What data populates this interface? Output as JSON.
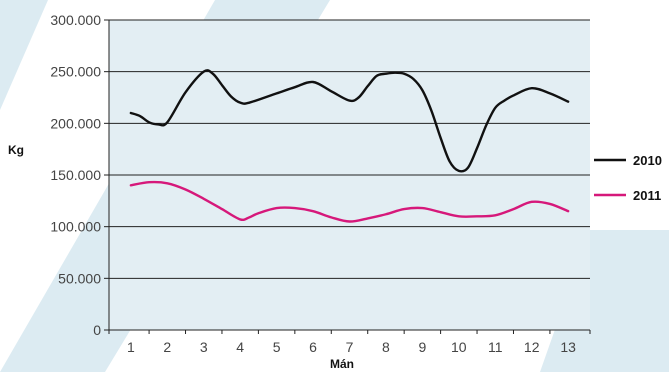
{
  "chart_data": {
    "type": "line",
    "xlabel": "Mán",
    "ylabel": "Kg",
    "x": [
      1,
      2,
      3,
      4,
      5,
      6,
      7,
      8,
      9,
      10,
      11,
      12,
      13
    ],
    "xlim": [
      0.4,
      13.6
    ],
    "ylim": [
      0,
      300000
    ],
    "y_ticks": [
      0,
      50000,
      100000,
      150000,
      200000,
      250000,
      300000
    ],
    "y_tick_labels": [
      "0",
      "50.000",
      "100.000",
      "150.000",
      "200.000",
      "250.000",
      "300.000"
    ],
    "x_tick_labels": [
      "1",
      "2",
      "3",
      "4",
      "5",
      "6",
      "7",
      "8",
      "9",
      "10",
      "11",
      "12",
      "13"
    ],
    "grid": "horizontal",
    "legend_position": "right",
    "series": [
      {
        "name": "2010",
        "color": "#111111",
        "points": [
          [
            1.0,
            210000
          ],
          [
            1.25,
            207000
          ],
          [
            1.5,
            201000
          ],
          [
            1.75,
            199000
          ],
          [
            2.0,
            201000
          ],
          [
            2.5,
            230000
          ],
          [
            3.0,
            250000
          ],
          [
            3.25,
            248000
          ],
          [
            3.5,
            237000
          ],
          [
            3.75,
            226000
          ],
          [
            4.0,
            220000
          ],
          [
            4.25,
            220000
          ],
          [
            5.0,
            229000
          ],
          [
            5.5,
            235000
          ],
          [
            6.0,
            240000
          ],
          [
            6.5,
            231000
          ],
          [
            7.0,
            222000
          ],
          [
            7.25,
            225000
          ],
          [
            7.5,
            236000
          ],
          [
            7.75,
            246000
          ],
          [
            8.0,
            248000
          ],
          [
            8.25,
            249000
          ],
          [
            8.5,
            248000
          ],
          [
            8.75,
            243000
          ],
          [
            9.0,
            232000
          ],
          [
            9.25,
            212000
          ],
          [
            9.5,
            186000
          ],
          [
            9.75,
            163000
          ],
          [
            10.0,
            154000
          ],
          [
            10.25,
            157000
          ],
          [
            10.5,
            176000
          ],
          [
            10.75,
            198000
          ],
          [
            11.0,
            215000
          ],
          [
            11.25,
            222000
          ],
          [
            11.5,
            227000
          ],
          [
            12.0,
            234000
          ],
          [
            12.5,
            229000
          ],
          [
            13.0,
            221000
          ]
        ]
      },
      {
        "name": "2011",
        "color": "#d6187a",
        "points": [
          [
            1.0,
            140000
          ],
          [
            1.5,
            143000
          ],
          [
            2.0,
            142000
          ],
          [
            2.5,
            136000
          ],
          [
            3.0,
            127000
          ],
          [
            3.5,
            117000
          ],
          [
            4.0,
            107000
          ],
          [
            4.25,
            109000
          ],
          [
            4.5,
            113000
          ],
          [
            5.0,
            118000
          ],
          [
            5.5,
            118000
          ],
          [
            6.0,
            115000
          ],
          [
            6.5,
            109000
          ],
          [
            7.0,
            105000
          ],
          [
            7.5,
            108000
          ],
          [
            8.0,
            112000
          ],
          [
            8.5,
            117000
          ],
          [
            9.0,
            118000
          ],
          [
            9.5,
            114000
          ],
          [
            10.0,
            110000
          ],
          [
            10.5,
            110000
          ],
          [
            11.0,
            111000
          ],
          [
            11.5,
            117000
          ],
          [
            12.0,
            124000
          ],
          [
            12.5,
            122000
          ],
          [
            13.0,
            115000
          ]
        ]
      }
    ]
  },
  "colors": {
    "plot_background": "#e3eef3",
    "page_stripes": "#dcebf2",
    "gridline": "#222222",
    "axis": "#222222"
  }
}
